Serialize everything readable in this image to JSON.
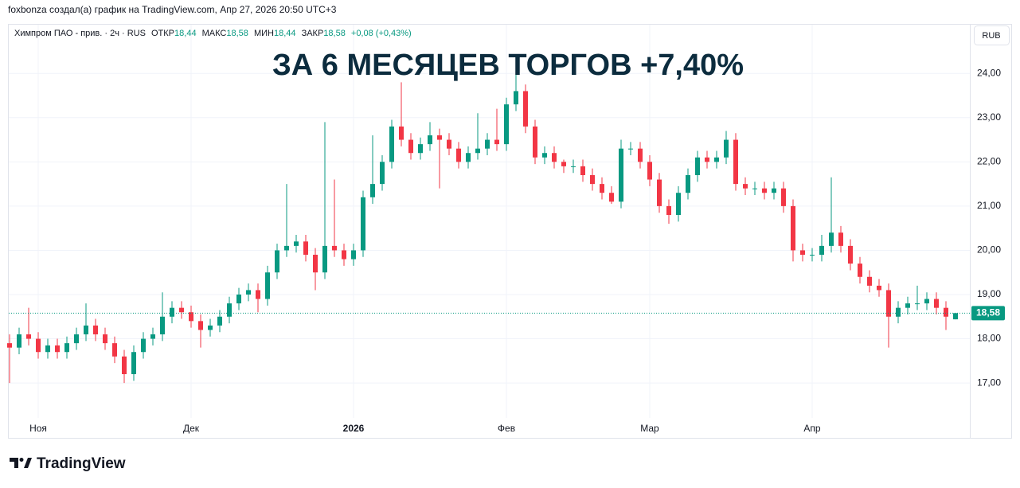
{
  "header": {
    "attribution": "foxbonza создал(а) график на TradingView.com, Апр 27, 2026 20:50 UTC+3"
  },
  "legend": {
    "symbol": "Химпром ПАО - прив. · 2ч · RUS",
    "open_label": "ОТКР",
    "open": "18,44",
    "high_label": "МАКС",
    "high": "18,58",
    "low_label": "МИН",
    "low": "18,44",
    "close_label": "ЗАКР",
    "close": "18,58",
    "change": "+0,08 (+0,43%)"
  },
  "currency_button": "RUB",
  "footer": {
    "brand": "TradingView"
  },
  "chart_data": {
    "type": "candlestick",
    "title": "ЗА 6 МЕСЯЦЕВ ТОРГОВ +7,40%",
    "up_color": "#089981",
    "down_color": "#f23645",
    "ylim": [
      16.21,
      25.12
    ],
    "yticks": [
      {
        "value": 17,
        "label": "17,00"
      },
      {
        "value": 18,
        "label": "18,00"
      },
      {
        "value": 19,
        "label": "19,00"
      },
      {
        "value": 20,
        "label": "20,00"
      },
      {
        "value": 21,
        "label": "21,00"
      },
      {
        "value": 22,
        "label": "22,00"
      },
      {
        "value": 23,
        "label": "23,00"
      },
      {
        "value": 24,
        "label": "24,00"
      }
    ],
    "xticks": [
      {
        "value": 3,
        "label": "Ноя"
      },
      {
        "value": 19,
        "label": "Дек"
      },
      {
        "value": 36,
        "label": "2026"
      },
      {
        "value": 52,
        "label": "Фев"
      },
      {
        "value": 67,
        "label": "Мар"
      },
      {
        "value": 84,
        "label": "Апр"
      }
    ],
    "grid": true,
    "last_price": {
      "value": 18.58,
      "label": "18,58"
    },
    "candles": [
      [
        17.9,
        18.1,
        17.0,
        17.8
      ],
      [
        17.8,
        18.25,
        17.65,
        18.1
      ],
      [
        18.1,
        18.7,
        17.85,
        18.0
      ],
      [
        18.0,
        18.15,
        17.55,
        17.7
      ],
      [
        17.7,
        18.0,
        17.55,
        17.85
      ],
      [
        17.85,
        18.0,
        17.55,
        17.7
      ],
      [
        17.7,
        18.05,
        17.55,
        17.9
      ],
      [
        17.9,
        18.25,
        17.75,
        18.1
      ],
      [
        18.1,
        18.8,
        17.95,
        18.3
      ],
      [
        18.3,
        18.45,
        17.95,
        18.1
      ],
      [
        18.1,
        18.25,
        17.75,
        17.9
      ],
      [
        17.9,
        18.05,
        17.45,
        17.6
      ],
      [
        17.6,
        17.75,
        17.0,
        17.2
      ],
      [
        17.2,
        17.85,
        17.05,
        17.7
      ],
      [
        17.7,
        18.15,
        17.55,
        18.0
      ],
      [
        18.0,
        18.25,
        17.85,
        18.1
      ],
      [
        18.1,
        19.05,
        17.95,
        18.5
      ],
      [
        18.5,
        18.85,
        18.35,
        18.7
      ],
      [
        18.7,
        18.85,
        18.45,
        18.6
      ],
      [
        18.6,
        18.75,
        18.25,
        18.4
      ],
      [
        18.4,
        18.55,
        17.8,
        18.2
      ],
      [
        18.2,
        18.45,
        18.05,
        18.3
      ],
      [
        18.3,
        18.65,
        18.15,
        18.5
      ],
      [
        18.5,
        18.95,
        18.35,
        18.8
      ],
      [
        18.8,
        19.15,
        18.65,
        19.0
      ],
      [
        19.0,
        19.25,
        18.85,
        19.1
      ],
      [
        19.1,
        19.25,
        18.6,
        18.9
      ],
      [
        18.9,
        19.65,
        18.75,
        19.5
      ],
      [
        19.5,
        20.15,
        19.35,
        20.0
      ],
      [
        20.0,
        21.5,
        19.85,
        20.1
      ],
      [
        20.1,
        20.35,
        19.95,
        20.2
      ],
      [
        20.2,
        20.35,
        19.75,
        19.9
      ],
      [
        19.9,
        20.05,
        19.1,
        19.5
      ],
      [
        19.5,
        22.9,
        19.35,
        20.1
      ],
      [
        20.1,
        21.6,
        19.85,
        20.0
      ],
      [
        20.0,
        20.15,
        19.65,
        19.8
      ],
      [
        19.8,
        20.15,
        19.65,
        20.0
      ],
      [
        20.0,
        21.35,
        19.85,
        21.2
      ],
      [
        21.2,
        22.6,
        21.05,
        21.5
      ],
      [
        21.5,
        22.15,
        21.35,
        22.0
      ],
      [
        22.0,
        22.95,
        21.85,
        22.8
      ],
      [
        22.8,
        23.8,
        22.35,
        22.5
      ],
      [
        22.5,
        22.65,
        22.05,
        22.2
      ],
      [
        22.2,
        22.55,
        22.05,
        22.4
      ],
      [
        22.4,
        22.9,
        22.25,
        22.6
      ],
      [
        22.6,
        22.75,
        21.4,
        22.5
      ],
      [
        22.5,
        22.65,
        22.15,
        22.3
      ],
      [
        22.3,
        22.45,
        21.85,
        22.0
      ],
      [
        22.0,
        22.35,
        21.85,
        22.2
      ],
      [
        22.2,
        23.1,
        22.05,
        22.3
      ],
      [
        22.3,
        22.65,
        22.15,
        22.5
      ],
      [
        22.5,
        23.2,
        22.25,
        22.4
      ],
      [
        22.4,
        23.45,
        22.25,
        23.3
      ],
      [
        23.3,
        24.05,
        23.15,
        23.6
      ],
      [
        23.6,
        23.75,
        22.65,
        22.8
      ],
      [
        22.8,
        22.95,
        21.95,
        22.1
      ],
      [
        22.1,
        22.35,
        21.95,
        22.2
      ],
      [
        22.2,
        22.35,
        21.85,
        22.0
      ],
      [
        22.0,
        22.05,
        21.75,
        21.9
      ],
      [
        21.9,
        22.05,
        21.75,
        21.9
      ],
      [
        21.9,
        22.05,
        21.55,
        21.7
      ],
      [
        21.7,
        21.85,
        21.35,
        21.5
      ],
      [
        21.5,
        21.65,
        21.15,
        21.3
      ],
      [
        21.3,
        21.45,
        21.05,
        21.1
      ],
      [
        21.1,
        22.5,
        20.95,
        22.3
      ],
      [
        22.3,
        22.45,
        22.15,
        22.3
      ],
      [
        22.3,
        22.45,
        21.85,
        22.0
      ],
      [
        22.0,
        22.15,
        21.45,
        21.6
      ],
      [
        21.6,
        21.75,
        20.85,
        21.0
      ],
      [
        21.0,
        21.15,
        20.6,
        20.8
      ],
      [
        20.8,
        21.45,
        20.65,
        21.3
      ],
      [
        21.3,
        21.85,
        21.15,
        21.7
      ],
      [
        21.7,
        22.25,
        21.55,
        22.1
      ],
      [
        22.1,
        22.25,
        21.85,
        22.0
      ],
      [
        22.0,
        22.25,
        21.85,
        22.1
      ],
      [
        22.1,
        22.7,
        21.95,
        22.5
      ],
      [
        22.5,
        22.65,
        21.35,
        21.5
      ],
      [
        21.5,
        21.65,
        21.25,
        21.4
      ],
      [
        21.4,
        21.55,
        21.25,
        21.4
      ],
      [
        21.4,
        21.55,
        21.15,
        21.3
      ],
      [
        21.3,
        21.55,
        21.15,
        21.4
      ],
      [
        21.4,
        21.55,
        20.85,
        21.0
      ],
      [
        21.0,
        21.15,
        19.75,
        20.0
      ],
      [
        20.0,
        20.15,
        19.75,
        19.9
      ],
      [
        19.9,
        20.05,
        19.75,
        19.9
      ],
      [
        19.9,
        20.35,
        19.75,
        20.1
      ],
      [
        20.1,
        21.65,
        19.95,
        20.4
      ],
      [
        20.4,
        20.55,
        19.95,
        20.1
      ],
      [
        20.1,
        20.25,
        19.55,
        19.7
      ],
      [
        19.7,
        19.85,
        19.25,
        19.4
      ],
      [
        19.4,
        19.55,
        19.05,
        19.2
      ],
      [
        19.2,
        19.35,
        18.95,
        19.1
      ],
      [
        19.1,
        19.25,
        17.8,
        18.5
      ],
      [
        18.5,
        18.85,
        18.35,
        18.7
      ],
      [
        18.7,
        18.95,
        18.55,
        18.8
      ],
      [
        18.8,
        19.2,
        18.65,
        18.8
      ],
      [
        18.8,
        19.05,
        18.65,
        18.9
      ],
      [
        18.9,
        19.05,
        18.55,
        18.7
      ],
      [
        18.7,
        18.85,
        18.2,
        18.5
      ],
      [
        18.44,
        18.58,
        18.44,
        18.58
      ]
    ]
  }
}
